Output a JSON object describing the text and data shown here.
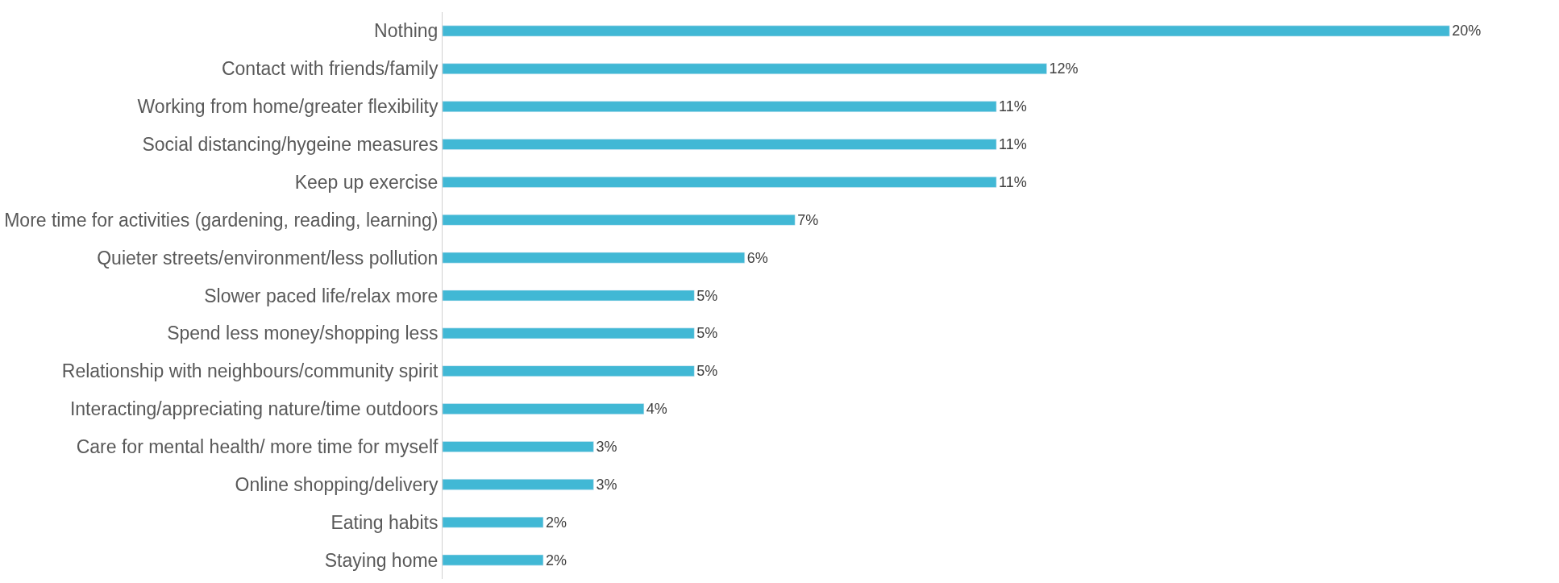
{
  "chart_data": {
    "type": "bar",
    "orientation": "horizontal",
    "categories": [
      "Nothing",
      "Contact with friends/family",
      "Working from home/greater flexibility",
      "Social distancing/hygeine measures",
      "Keep up exercise",
      "More time for activities (gardening, reading, learning)",
      "Quieter streets/environment/less pollution",
      "Slower paced life/relax more",
      "Spend less money/shopping less",
      "Relationship with neighbours/community spirit",
      "Interacting/appreciating nature/time outdoors",
      "Care for mental health/ more time for myself",
      "Online shopping/delivery",
      "Eating habits",
      "Staying home"
    ],
    "values": [
      20,
      12,
      11,
      11,
      11,
      7,
      6,
      5,
      5,
      5,
      4,
      3,
      3,
      2,
      2
    ],
    "value_labels": [
      "20%",
      "12%",
      "11%",
      "11%",
      "11%",
      "7%",
      "6%",
      "5%",
      "5%",
      "5%",
      "4%",
      "3%",
      "3%",
      "2%",
      "2%"
    ],
    "color": "#41b8d5"
  }
}
